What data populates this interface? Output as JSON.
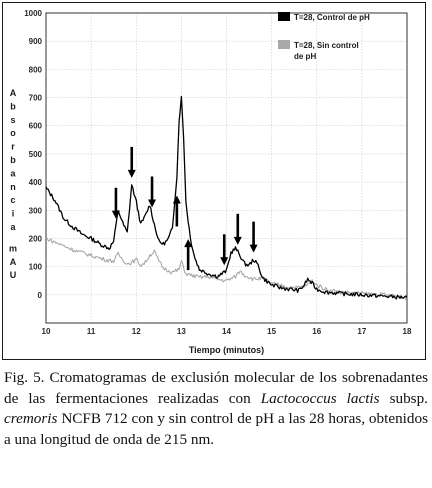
{
  "figure": {
    "caption": {
      "part1": "Fig. 5. Cromatogramas de exclusión molecular de los sobrenadantes de las fermentaciones realizadas con ",
      "italic1": "Lactococcus lactis",
      "part2": " subsp. ",
      "italic2": "cremoris",
      "part3": " NCFB 712 con y sin control de pH a las 28 horas, obtenidos a una longitud de onda de 215 nm."
    }
  },
  "chart_data": {
    "type": "line",
    "title": "",
    "xlabel": "Tiempo (minutos)",
    "ylabel": "Absorbancia mAU",
    "ylabel_letters": [
      "A",
      "b",
      "s",
      "o",
      "r",
      "b",
      "a",
      "n",
      "c",
      "i",
      "a",
      "m",
      "A",
      "U"
    ],
    "xlim": [
      10,
      18
    ],
    "ylim": [
      -100,
      1000
    ],
    "xticks": [
      10,
      11,
      12,
      13,
      14,
      15,
      16,
      17,
      18
    ],
    "yticks": [
      0,
      100,
      200,
      300,
      400,
      500,
      600,
      700,
      800,
      900,
      1000
    ],
    "grid": true,
    "legend_position": "top-right",
    "series": [
      {
        "name": "T=28, Control de pH",
        "color": "#000000",
        "x": [
          10.0,
          10.2,
          10.4,
          10.6,
          10.8,
          11.0,
          11.2,
          11.4,
          11.5,
          11.6,
          11.7,
          11.8,
          11.9,
          12.0,
          12.1,
          12.2,
          12.3,
          12.4,
          12.5,
          12.6,
          12.7,
          12.8,
          12.9,
          12.95,
          13.0,
          13.05,
          13.1,
          13.2,
          13.3,
          13.4,
          13.6,
          13.8,
          14.0,
          14.1,
          14.2,
          14.3,
          14.4,
          14.5,
          14.6,
          14.7,
          14.8,
          15.0,
          15.2,
          15.4,
          15.6,
          15.7,
          15.8,
          15.9,
          16.0,
          16.2,
          16.5,
          17.0,
          17.5,
          18.0
        ],
        "y": [
          380,
          335,
          270,
          240,
          215,
          200,
          180,
          165,
          190,
          300,
          255,
          220,
          390,
          330,
          250,
          280,
          320,
          250,
          190,
          180,
          195,
          235,
          420,
          620,
          700,
          560,
          330,
          200,
          130,
          90,
          75,
          65,
          85,
          150,
          165,
          140,
          110,
          105,
          125,
          105,
          60,
          35,
          25,
          20,
          15,
          30,
          55,
          40,
          20,
          10,
          5,
          0,
          -5,
          -10
        ]
      },
      {
        "name": "T=28, Sin control de pH",
        "color": "#a8a8a8",
        "x": [
          10.0,
          10.3,
          10.6,
          11.0,
          11.3,
          11.5,
          11.6,
          11.7,
          11.8,
          11.9,
          12.0,
          12.1,
          12.2,
          12.3,
          12.4,
          12.5,
          12.6,
          12.8,
          12.95,
          13.0,
          13.05,
          13.1,
          13.2,
          13.4,
          13.6,
          13.8,
          14.0,
          14.2,
          14.3,
          14.4,
          14.6,
          14.8,
          15.0,
          15.3,
          15.6,
          15.8,
          15.9,
          16.0,
          16.2,
          16.5,
          17.0,
          17.5,
          18.0
        ],
        "y": [
          200,
          180,
          160,
          140,
          125,
          120,
          145,
          125,
          110,
          115,
          125,
          105,
          115,
          140,
          155,
          120,
          95,
          80,
          90,
          120,
          95,
          75,
          70,
          62,
          65,
          55,
          50,
          65,
          85,
          70,
          55,
          60,
          40,
          30,
          25,
          35,
          50,
          35,
          20,
          10,
          5,
          0,
          -10
        ]
      }
    ],
    "annotations": {
      "arrows_down_x": [
        11.55,
        11.9,
        12.35,
        13.95,
        14.25,
        14.6
      ],
      "arrows_up_x": [
        12.9,
        13.15
      ]
    }
  }
}
